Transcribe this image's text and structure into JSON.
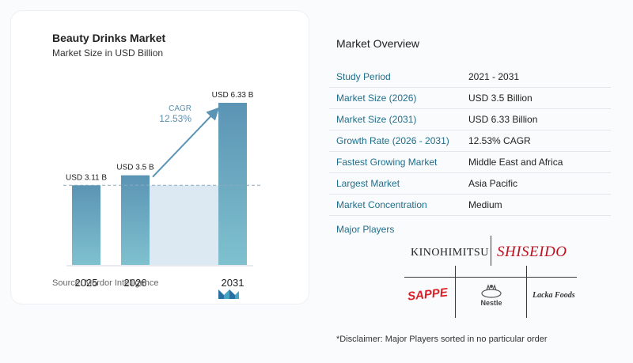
{
  "chart_data": {
    "type": "bar",
    "title": "Beauty Drinks Market",
    "subtitle": "Market Size in USD Billion",
    "categories": [
      "2025",
      "2026",
      "2031"
    ],
    "values": [
      3.11,
      3.5,
      6.33
    ],
    "data_labels": [
      "USD 3.11 B",
      "USD 3.5 B",
      "USD 6.33 B"
    ],
    "cagr_label": "CAGR",
    "cagr_value": "12.53%",
    "ylim": [
      0,
      6.33
    ],
    "bar_color": "#5b94b4",
    "bar_color_end": "#7fc1cf",
    "shade_color": "#dde9f2",
    "arrow_color": "#5b94b4"
  },
  "source": "Source:  Mordor Intelligence",
  "overview": {
    "title": "Market Overview",
    "rows": [
      {
        "key": "Study Period",
        "value": "2021 - 2031"
      },
      {
        "key": "Market Size (2026)",
        "value": "USD 3.5 Billion"
      },
      {
        "key": "Market Size (2031)",
        "value": "USD 6.33 Billion"
      },
      {
        "key": "Growth Rate (2026 - 2031)",
        "value": "12.53% CAGR"
      },
      {
        "key": "Fastest Growing Market",
        "value": "Middle East and Africa"
      },
      {
        "key": "Largest Market",
        "value": "Asia Pacific"
      },
      {
        "key": "Market Concentration",
        "value": "Medium"
      }
    ]
  },
  "players": {
    "label": "Major Players",
    "names": [
      "KINOHIMITSU",
      "SHISEIDO",
      "SAPPE",
      "Nestle",
      "Lacka Foods"
    ]
  },
  "disclaimer": "*Disclaimer: Major Players sorted in no particular order",
  "colors": {
    "key_text": "#1f6e8c",
    "shiseido_red": "#c0111f",
    "sappe_red": "#d91f26"
  }
}
